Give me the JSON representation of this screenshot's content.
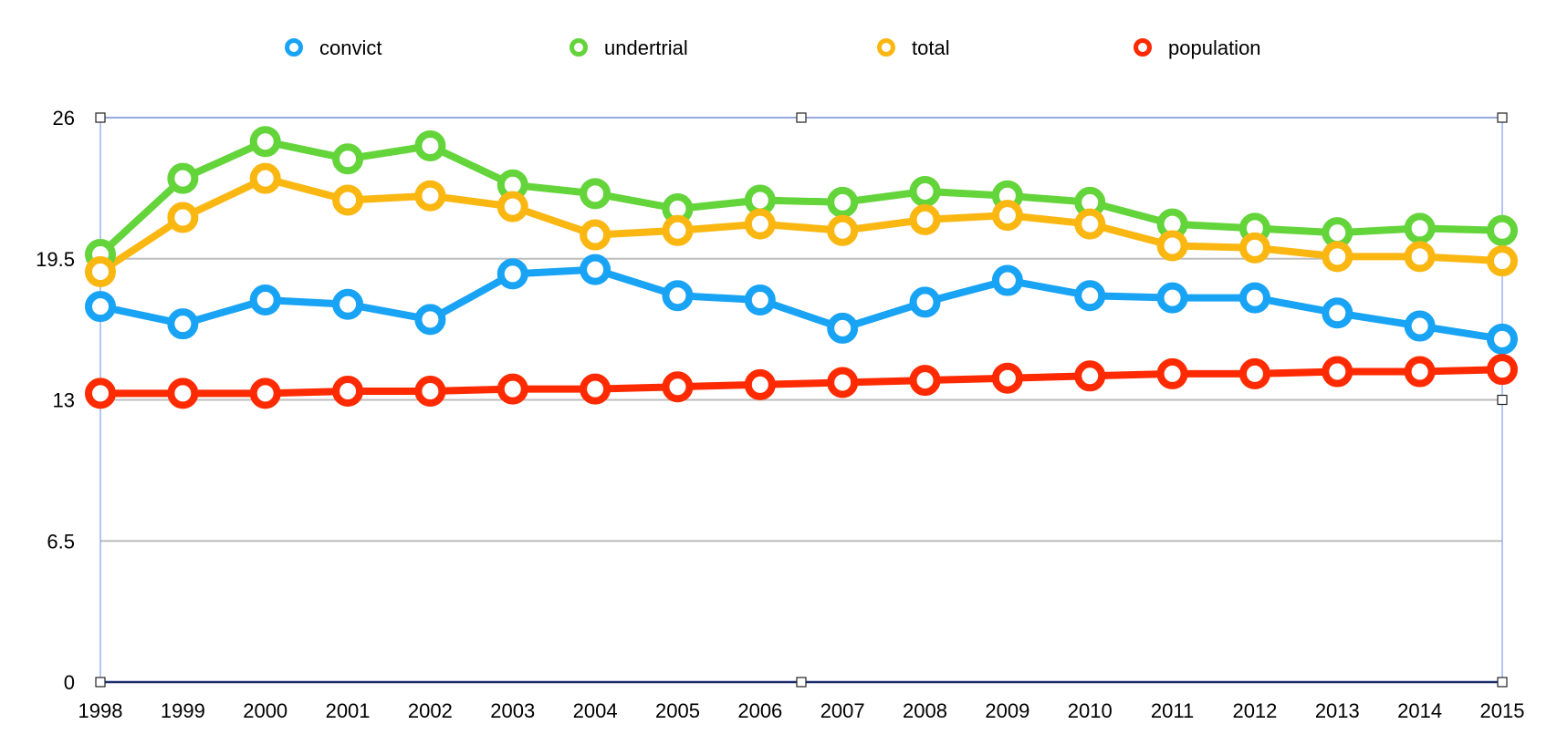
{
  "chart_data": {
    "type": "line",
    "title": "",
    "xlabel": "",
    "ylabel": "",
    "x": [
      "1998",
      "1999",
      "2000",
      "2001",
      "2002",
      "2003",
      "2004",
      "2005",
      "2006",
      "2007",
      "2008",
      "2009",
      "2010",
      "2011",
      "2012",
      "2013",
      "2014",
      "2015"
    ],
    "ylim": [
      0,
      26
    ],
    "yticks": [
      "0",
      "6.5",
      "13",
      "19.5",
      "26"
    ],
    "grid": true,
    "legend_position": "top",
    "series": [
      {
        "name": "convict",
        "color": "#18A3F5",
        "values": [
          17.3,
          16.5,
          17.6,
          17.4,
          16.7,
          18.8,
          19.0,
          17.8,
          17.6,
          16.3,
          17.5,
          18.5,
          17.8,
          17.7,
          17.7,
          17.0,
          16.4,
          15.8
        ]
      },
      {
        "name": "undertrial",
        "color": "#63D43A",
        "values": [
          19.7,
          23.2,
          24.9,
          24.1,
          24.7,
          22.9,
          22.5,
          21.8,
          22.2,
          22.1,
          22.6,
          22.4,
          22.1,
          21.1,
          20.9,
          20.7,
          20.9,
          20.8
        ]
      },
      {
        "name": "total",
        "color": "#FBB711",
        "values": [
          18.9,
          21.4,
          23.2,
          22.2,
          22.4,
          21.9,
          20.6,
          20.8,
          21.1,
          20.8,
          21.3,
          21.5,
          21.1,
          20.1,
          20.0,
          19.6,
          19.6,
          19.4
        ]
      },
      {
        "name": "population",
        "color": "#FF2A00",
        "values": [
          13.3,
          13.3,
          13.3,
          13.4,
          13.4,
          13.5,
          13.5,
          13.6,
          13.7,
          13.8,
          13.9,
          14.0,
          14.1,
          14.2,
          14.2,
          14.3,
          14.3,
          14.4
        ]
      }
    ]
  }
}
